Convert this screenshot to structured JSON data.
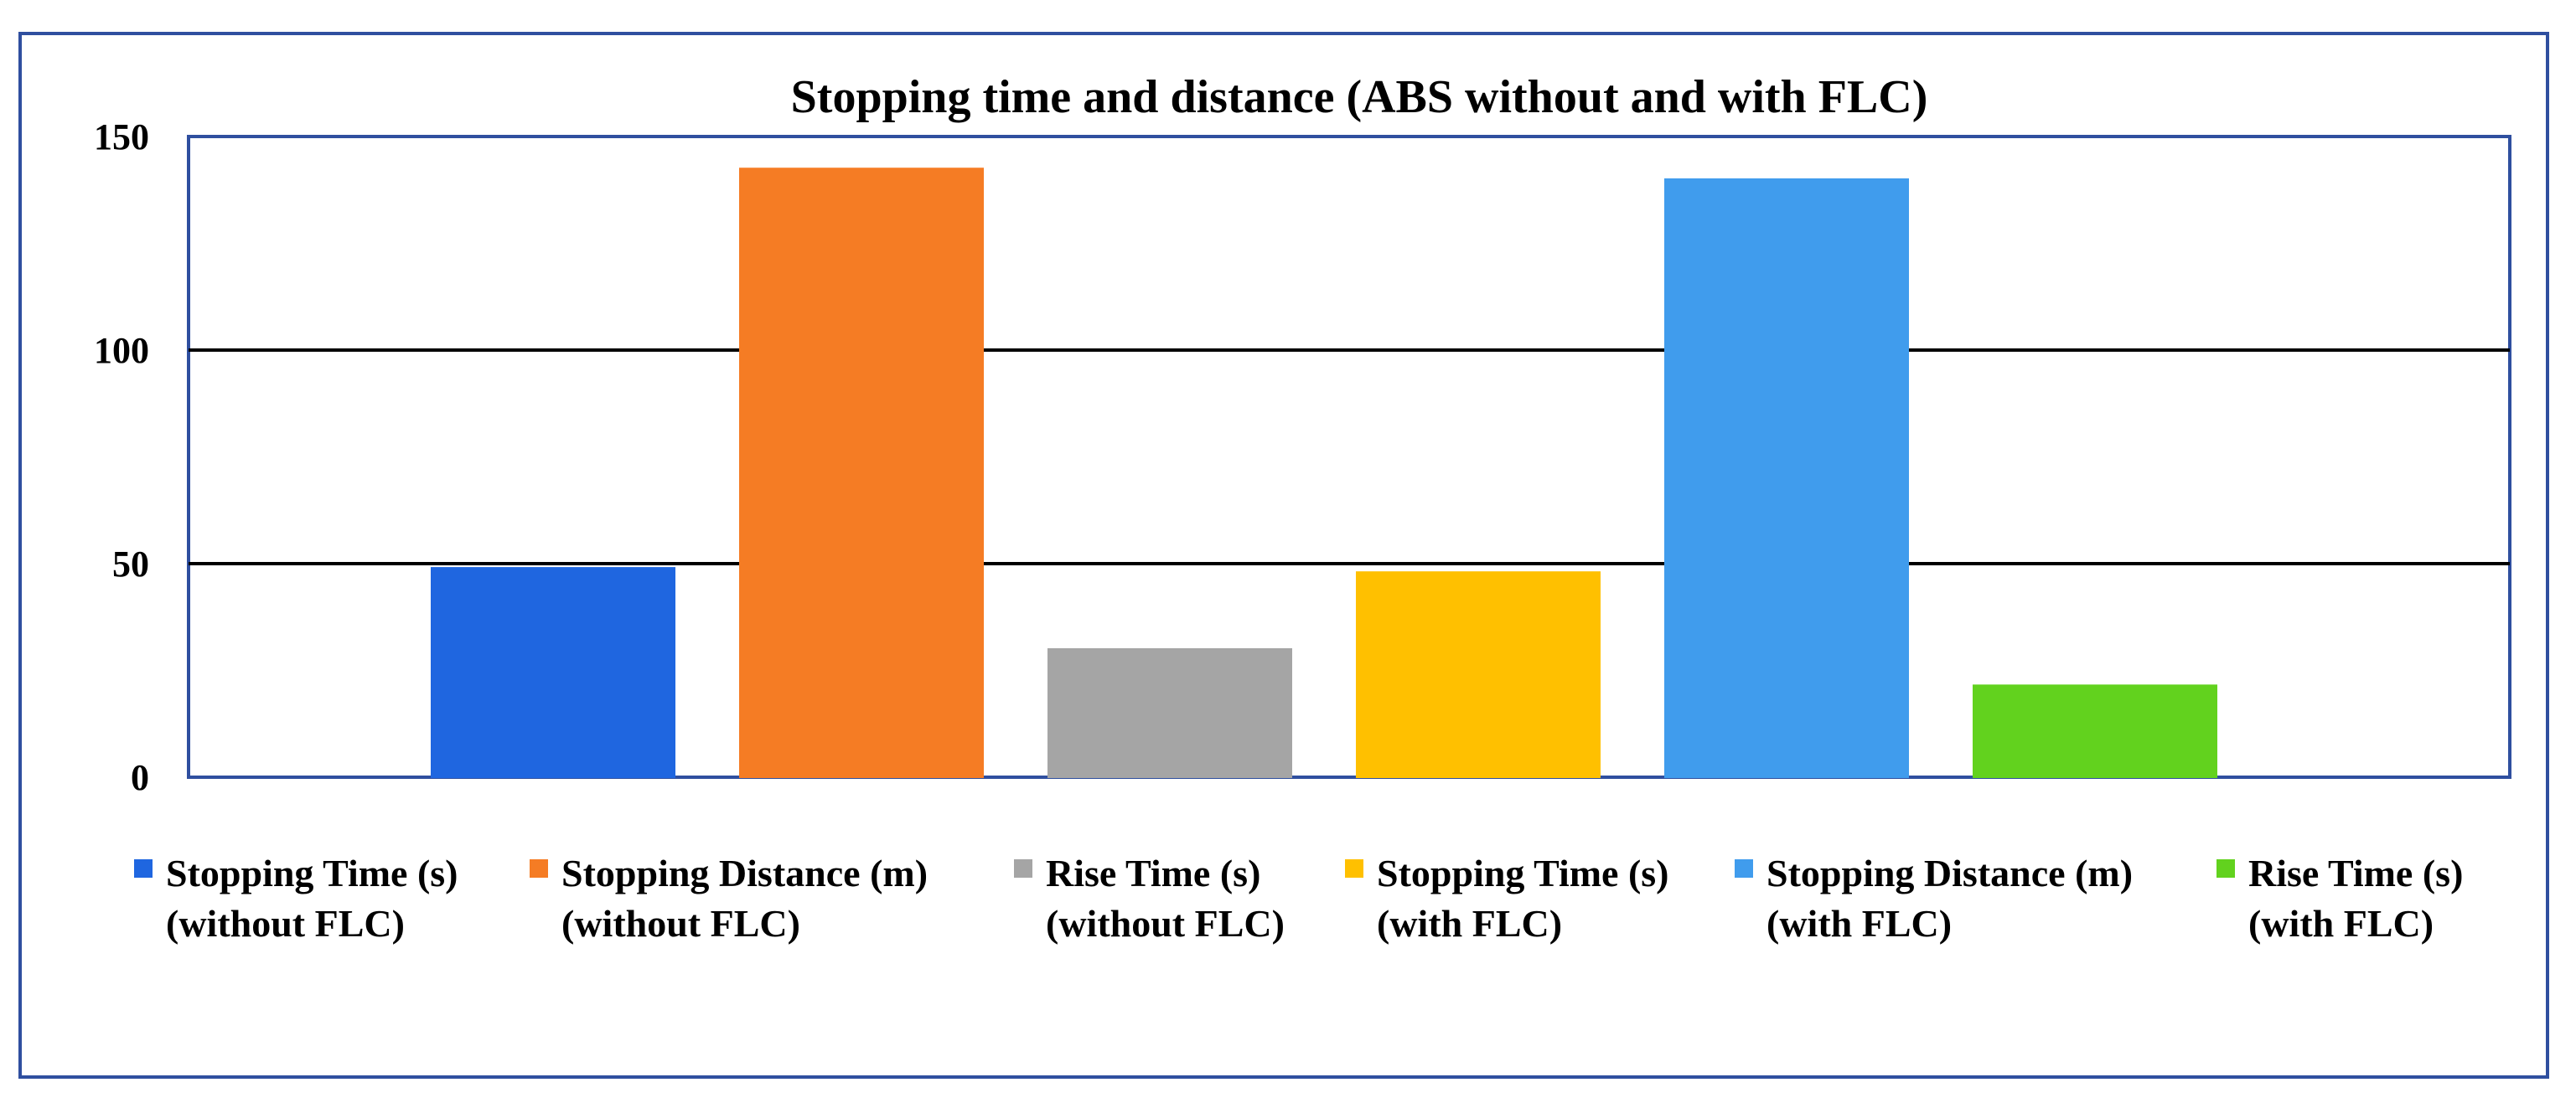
{
  "chart_data": {
    "type": "bar",
    "title": "Stopping time and distance (ABS without and with FLC)",
    "xlabel": "",
    "ylabel": "",
    "ylim": [
      0,
      150
    ],
    "yticks": [
      0,
      50,
      100,
      150
    ],
    "grid": true,
    "legend_position": "bottom",
    "series": [
      {
        "name": "Stopping Time (s) (without FLC)",
        "label_lines": [
          "Stopping Time (s)",
          "(without FLC)"
        ],
        "value": 49,
        "color": "#1f66e0"
      },
      {
        "name": "Stopping Distance (m) (without FLC)",
        "label_lines": [
          "Stopping Distance (m)",
          "(without FLC)"
        ],
        "value": 142.5,
        "color": "#f57c24"
      },
      {
        "name": "Rise Time (s) (without FLC)",
        "label_lines": [
          "Rise Time (s)",
          "(without FLC)"
        ],
        "value": 30,
        "color": "#a5a5a5"
      },
      {
        "name": "Stopping Time (s) (with FLC)",
        "label_lines": [
          "Stopping Time (s)",
          "(with FLC)"
        ],
        "value": 48,
        "color": "#ffc000"
      },
      {
        "name": "Stopping Distance (m) (with FLC)",
        "label_lines": [
          "Stopping Distance (m)",
          "(with FLC)"
        ],
        "value": 140,
        "color": "#409ced"
      },
      {
        "name": "Rise Time (s) (with FLC)",
        "label_lines": [
          "Rise Time (s)",
          "(with FLC)"
        ],
        "value": 21.5,
        "color": "#62d21e"
      }
    ]
  }
}
